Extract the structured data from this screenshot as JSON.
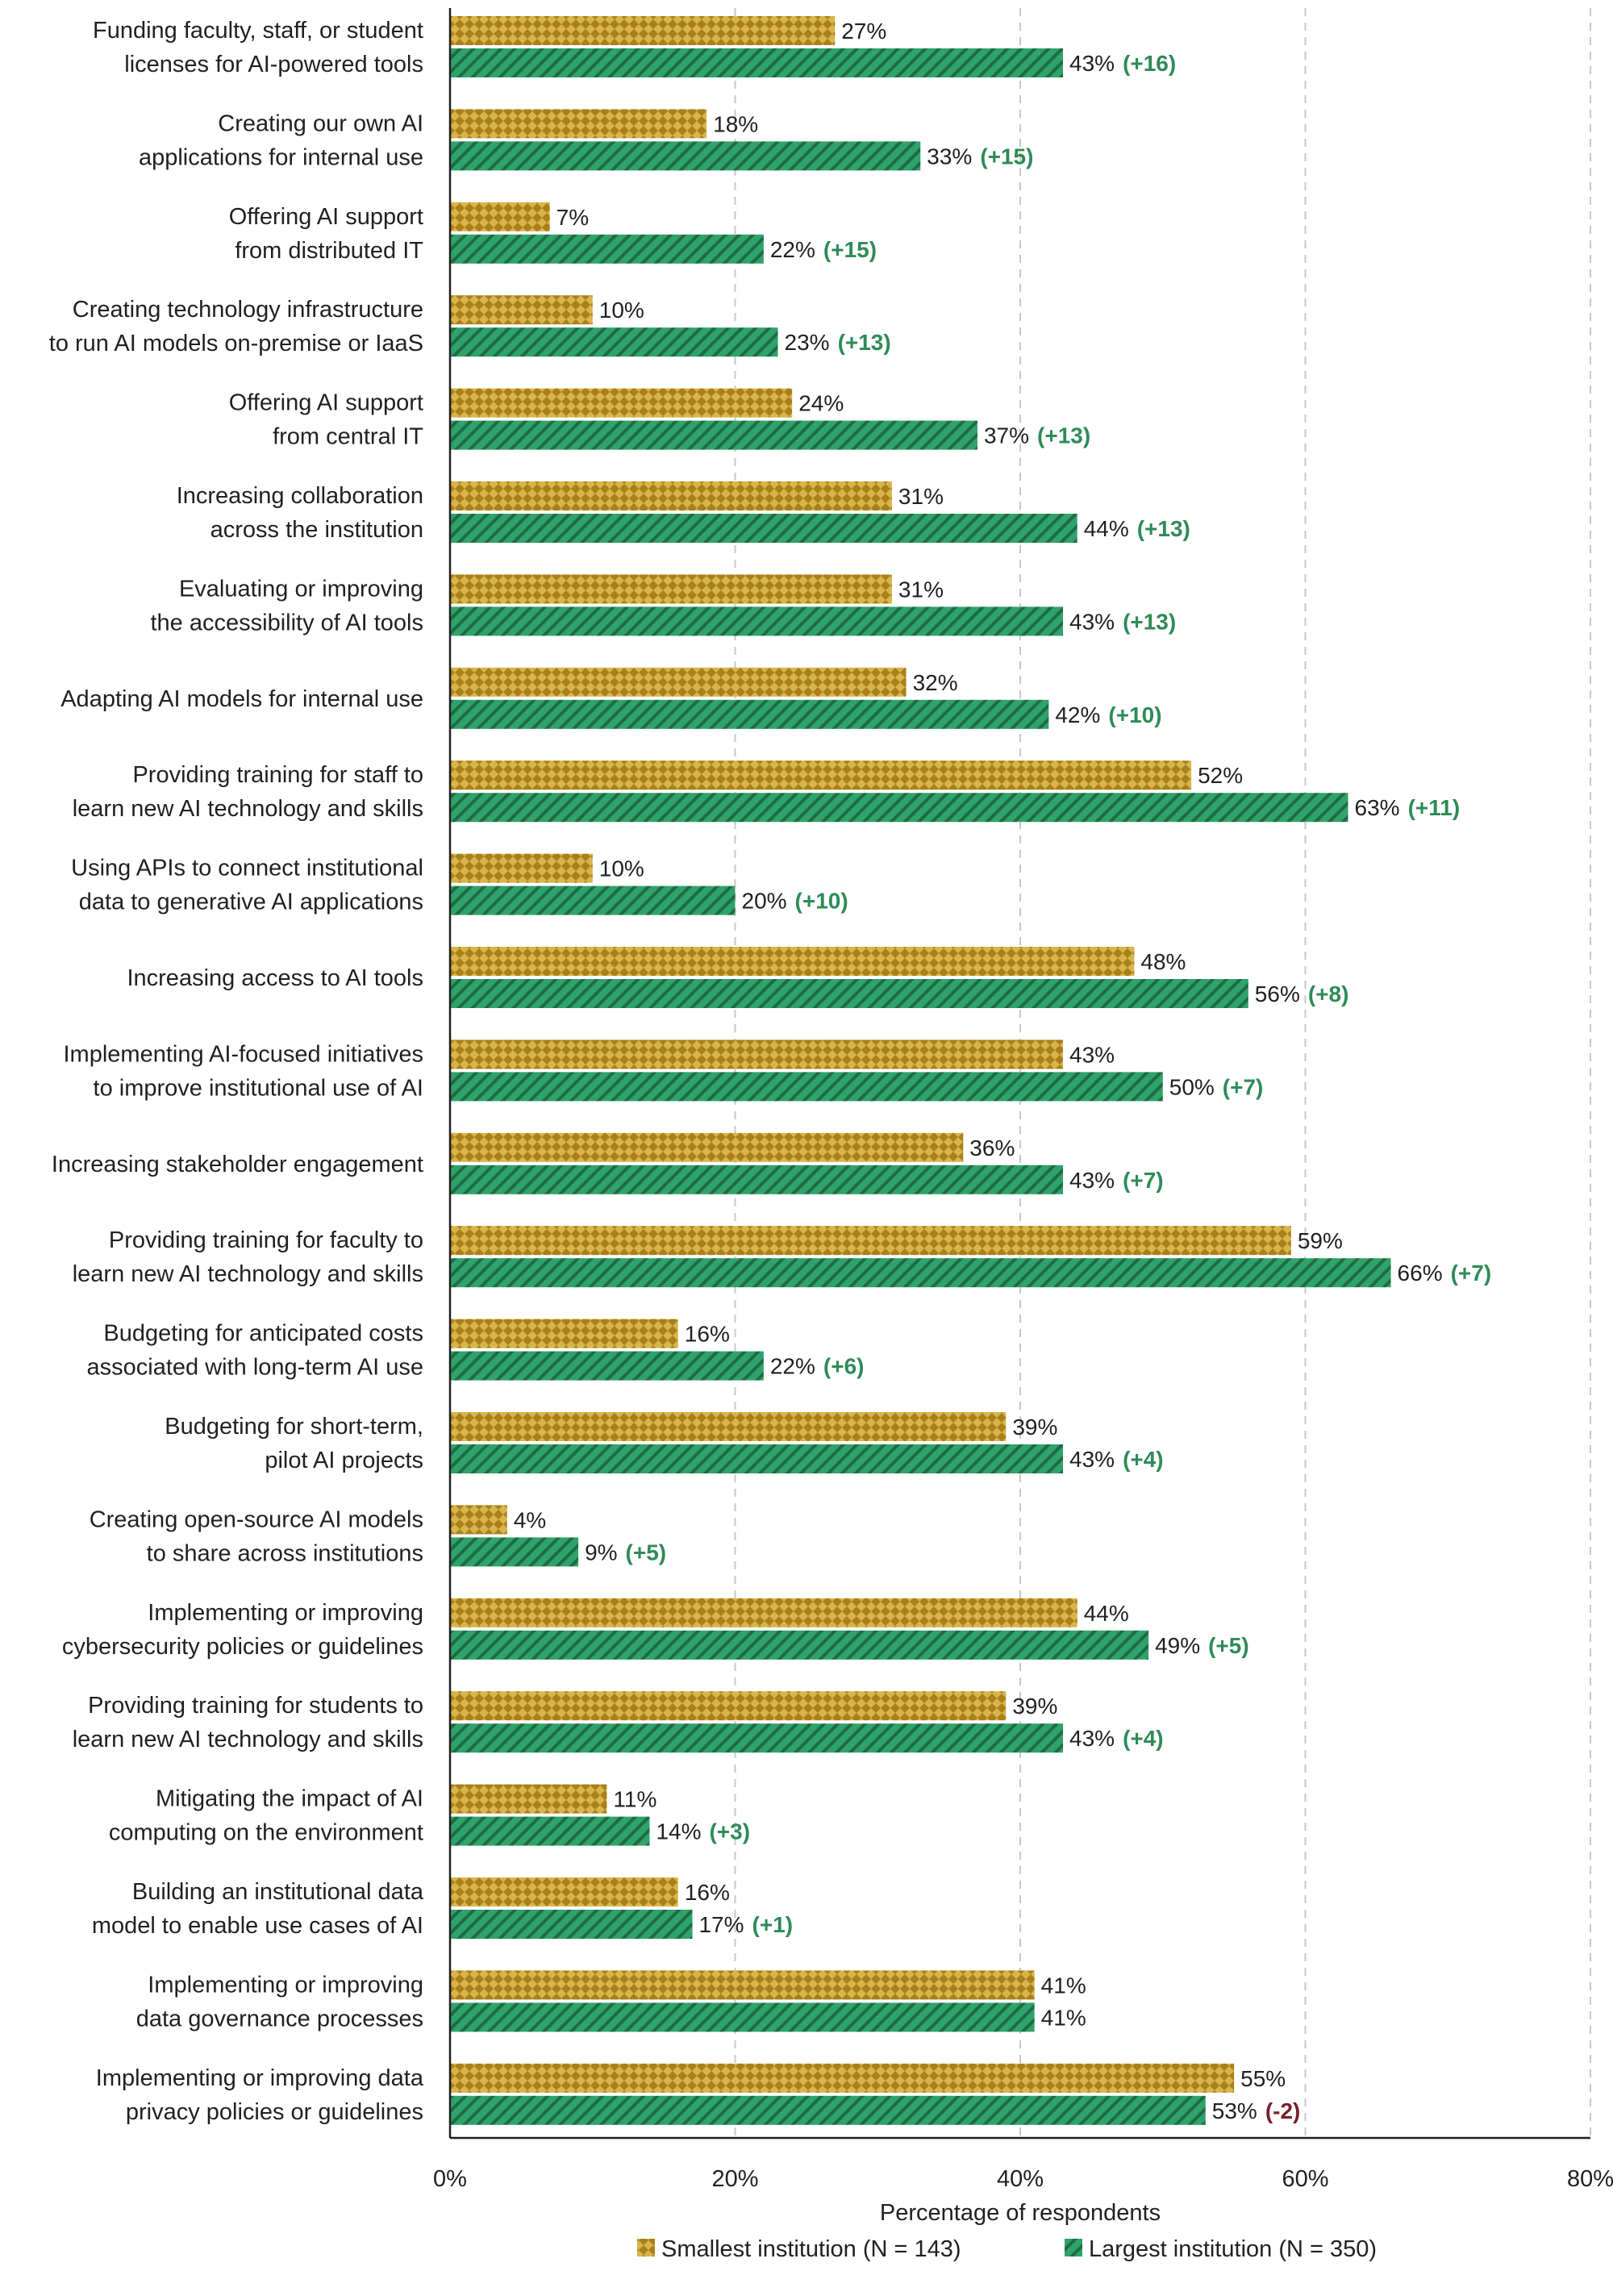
{
  "chart_data": {
    "type": "bar",
    "orientation": "horizontal",
    "categories": [
      [
        "Funding faculty, staff, or student",
        "licenses for AI-powered tools"
      ],
      [
        "Creating our own AI",
        "applications for internal use"
      ],
      [
        "Offering AI support",
        "from distributed IT"
      ],
      [
        "Creating technology infrastructure",
        "to run AI models on-premise or IaaS"
      ],
      [
        "Offering AI support",
        "from central IT"
      ],
      [
        "Increasing collaboration",
        "across the institution"
      ],
      [
        "Evaluating or improving",
        "the accessibility of AI tools"
      ],
      [
        "Adapting AI models for internal use"
      ],
      [
        "Providing training for staff to",
        "learn new AI technology and skills"
      ],
      [
        "Using APIs to connect institutional",
        "data to generative AI applications"
      ],
      [
        "Increasing access to AI tools"
      ],
      [
        "Implementing AI-focused initiatives",
        "to improve institutional use of AI"
      ],
      [
        "Increasing stakeholder engagement"
      ],
      [
        "Providing training for faculty to",
        "learn new AI technology and skills"
      ],
      [
        "Budgeting for anticipated costs",
        "associated with long-term AI use"
      ],
      [
        "Budgeting for short-term,",
        "pilot AI projects"
      ],
      [
        "Creating open-source AI models",
        "to share across institutions"
      ],
      [
        "Implementing or improving",
        "cybersecurity policies or guidelines"
      ],
      [
        "Providing training for students to",
        "learn new AI technology and skills"
      ],
      [
        "Mitigating the impact of AI",
        "computing on the environment"
      ],
      [
        "Building an institutional data",
        "model to enable use cases of AI"
      ],
      [
        "Implementing or improving",
        "data governance processes"
      ],
      [
        "Implementing or improving data",
        "privacy policies or guidelines"
      ]
    ],
    "series": [
      {
        "name": "Smallest institution (N = 143)",
        "color": "#c9a227",
        "pattern": "checker",
        "values": [
          27,
          18,
          7,
          10,
          24,
          31,
          31,
          32,
          52,
          10,
          48,
          43,
          36,
          59,
          16,
          39,
          4,
          44,
          39,
          11,
          16,
          41,
          55
        ],
        "value_labels": [
          "27%",
          "18%",
          "7%",
          "10%",
          "24%",
          "31%",
          "31%",
          "32%",
          "52%",
          "10%",
          "48%",
          "43%",
          "36%",
          "59%",
          "16%",
          "39%",
          "4%",
          "44%",
          "39%",
          "11%",
          "16%",
          "41%",
          "55%"
        ]
      },
      {
        "name": "Largest institution (N = 350)",
        "color": "#2ea36a",
        "pattern": "hatch",
        "values": [
          43,
          33,
          22,
          23,
          37,
          44,
          43,
          42,
          63,
          20,
          56,
          50,
          43,
          66,
          22,
          43,
          9,
          49,
          43,
          14,
          17,
          41,
          53
        ],
        "value_labels": [
          "43%",
          "33%",
          "22%",
          "23%",
          "37%",
          "44%",
          "43%",
          "42%",
          "63%",
          "20%",
          "56%",
          "50%",
          "43%",
          "66%",
          "22%",
          "43%",
          "9%",
          "49%",
          "43%",
          "14%",
          "17%",
          "41%",
          "53%"
        ]
      }
    ],
    "differences": [
      "(+16)",
      "(+15)",
      "(+15)",
      "(+13)",
      "(+13)",
      "(+13)",
      "(+13)",
      "(+10)",
      "(+11)",
      "(+10)",
      "(+8)",
      "(+7)",
      "(+7)",
      "(+7)",
      "(+6)",
      "(+4)",
      "(+5)",
      "(+5)",
      "(+4)",
      "(+3)",
      "(+1)",
      "",
      "(-2)"
    ],
    "positive_diff_color": "#2e8b57",
    "negative_diff_color": "#7a1f2b",
    "xlim": [
      0,
      80
    ],
    "xticks": [
      "0%",
      "20%",
      "40%",
      "60%",
      "80%"
    ],
    "xlabel": "Percentage of respondents",
    "ylabel": "",
    "title": "",
    "grid": "vertical-dashed",
    "legend_position": "bottom"
  }
}
